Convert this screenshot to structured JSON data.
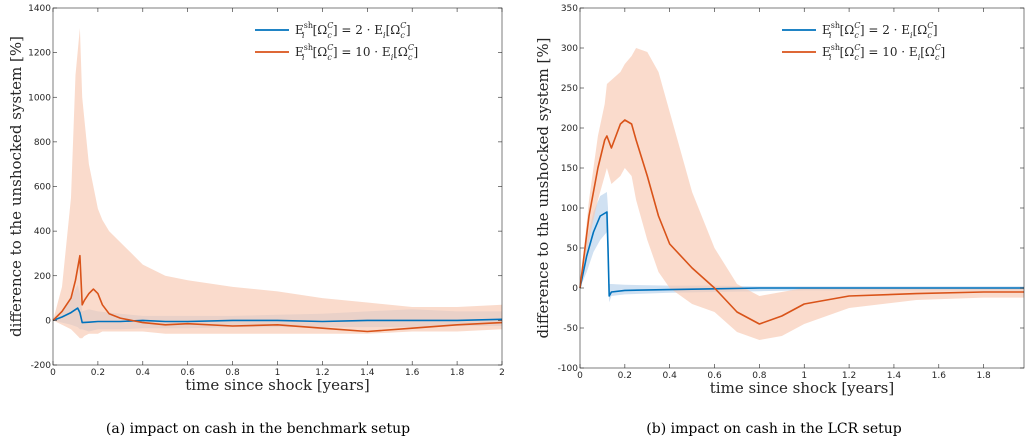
{
  "captions": {
    "a": "(a) impact on cash in the benchmark setup",
    "b": "(b) impact on cash in the LCR setup"
  },
  "colors": {
    "series_blue": "#0072BD",
    "series_red": "#D95319",
    "band_blue": "#a9c8e8",
    "band_red": "#f8c8b0"
  },
  "chart_data": [
    {
      "type": "line",
      "xlabel": "time since shock [years]",
      "ylabel": "difference to the unshocked system [%]",
      "xlim": [
        0,
        2
      ],
      "ylim": [
        -200,
        1400
      ],
      "x_ticks": [
        "0",
        "0.2",
        "0.4",
        "0.6",
        "0.8",
        "1",
        "1.2",
        "1.4",
        "1.6",
        "1.8",
        "2"
      ],
      "y_ticks": [
        "-200",
        "0",
        "200",
        "400",
        "600",
        "800",
        "1000",
        "1200",
        "1400"
      ],
      "grid": false,
      "legend_position": "top-right",
      "series": [
        {
          "name": "E_i^sh[Ω_c^C] = 2 · E_i[Ω_c^C]",
          "color": "#0072BD",
          "x": [
            0,
            0.04,
            0.08,
            0.11,
            0.12,
            0.13,
            0.16,
            0.2,
            0.3,
            0.4,
            0.5,
            0.6,
            0.8,
            1.0,
            1.2,
            1.4,
            1.6,
            1.8,
            2.0
          ],
          "y": [
            0,
            15,
            35,
            55,
            35,
            -10,
            -8,
            -5,
            -5,
            0,
            -5,
            -5,
            0,
            0,
            -5,
            0,
            0,
            0,
            5
          ],
          "band_upper": [
            0,
            40,
            100,
            160,
            120,
            40,
            50,
            40,
            30,
            20,
            20,
            20,
            20,
            25,
            30,
            40,
            50,
            40,
            40
          ],
          "band_lower": [
            0,
            -10,
            -20,
            -30,
            -40,
            -40,
            -50,
            -40,
            -40,
            -35,
            -35,
            -35,
            -30,
            -30,
            -30,
            -30,
            -30,
            -25,
            -25
          ]
        },
        {
          "name": "E_i^sh[Ω_c^C] = 10 · E_i[Ω_c^C]",
          "color": "#D95319",
          "x": [
            0,
            0.04,
            0.08,
            0.1,
            0.12,
            0.13,
            0.14,
            0.16,
            0.18,
            0.2,
            0.22,
            0.25,
            0.3,
            0.35,
            0.4,
            0.5,
            0.6,
            0.8,
            1.0,
            1.2,
            1.4,
            1.6,
            1.8,
            2.0
          ],
          "y": [
            0,
            40,
            100,
            180,
            290,
            70,
            90,
            120,
            140,
            120,
            70,
            30,
            10,
            0,
            -10,
            -20,
            -15,
            -25,
            -20,
            -35,
            -50,
            -35,
            -20,
            -10
          ],
          "band_upper": [
            0,
            150,
            550,
            1100,
            1310,
            1000,
            900,
            700,
            600,
            500,
            450,
            400,
            350,
            300,
            250,
            200,
            180,
            150,
            130,
            100,
            80,
            60,
            60,
            70
          ],
          "band_lower": [
            0,
            -20,
            -40,
            -60,
            -80,
            -80,
            -70,
            -60,
            -60,
            -60,
            -50,
            -50,
            -50,
            -50,
            -50,
            -60,
            -60,
            -60,
            -60,
            -60,
            -60,
            -50,
            -50,
            -40
          ]
        }
      ]
    },
    {
      "type": "line",
      "xlabel": "time since shock [years]",
      "ylabel": "difference to the unshocked system [%]",
      "xlim": [
        0,
        1.98
      ],
      "ylim": [
        -100,
        350
      ],
      "x_ticks": [
        "0",
        "0.2",
        "0.4",
        "0.6",
        "0.8",
        "1",
        "1.2",
        "1.4",
        "1.6",
        "1.8"
      ],
      "y_ticks": [
        "-100",
        "-50",
        "0",
        "50",
        "100",
        "150",
        "200",
        "250",
        "300",
        "350"
      ],
      "grid": false,
      "legend_position": "top-right",
      "series": [
        {
          "name": "E_i^sh[Ω_c^C] = 2 · E_i[Ω_c^C]",
          "color": "#0072BD",
          "x": [
            0,
            0.03,
            0.06,
            0.09,
            0.12,
            0.125,
            0.13,
            0.14,
            0.2,
            0.4,
            0.6,
            0.8,
            1.0,
            1.5,
            1.98
          ],
          "y": [
            0,
            40,
            70,
            90,
            95,
            50,
            -10,
            -5,
            -3,
            -2,
            -1,
            0,
            0,
            0,
            0
          ],
          "band_upper": [
            0,
            60,
            95,
            115,
            120,
            100,
            5,
            5,
            4,
            3,
            3,
            2,
            2,
            2,
            2
          ],
          "band_lower": [
            0,
            20,
            45,
            60,
            70,
            20,
            -18,
            -10,
            -8,
            -6,
            -5,
            -4,
            -3,
            -3,
            -3
          ]
        },
        {
          "name": "E_i^sh[Ω_c^C] = 10 · E_i[Ω_c^C]",
          "color": "#D95319",
          "x": [
            0,
            0.04,
            0.08,
            0.11,
            0.12,
            0.14,
            0.18,
            0.2,
            0.23,
            0.25,
            0.3,
            0.35,
            0.4,
            0.5,
            0.6,
            0.7,
            0.8,
            0.9,
            1.0,
            1.2,
            1.5,
            1.8,
            1.98
          ],
          "y": [
            0,
            90,
            150,
            185,
            190,
            175,
            205,
            210,
            205,
            185,
            140,
            90,
            55,
            25,
            0,
            -30,
            -45,
            -35,
            -20,
            -10,
            -7,
            -5,
            -5
          ],
          "band_upper": [
            0,
            110,
            190,
            230,
            255,
            260,
            270,
            280,
            290,
            300,
            295,
            270,
            220,
            120,
            50,
            5,
            -10,
            -5,
            0,
            0,
            0,
            0,
            0
          ],
          "band_lower": [
            0,
            60,
            110,
            140,
            150,
            130,
            140,
            150,
            140,
            110,
            60,
            20,
            0,
            -20,
            -30,
            -55,
            -65,
            -60,
            -45,
            -25,
            -15,
            -12,
            -12
          ]
        }
      ]
    }
  ]
}
